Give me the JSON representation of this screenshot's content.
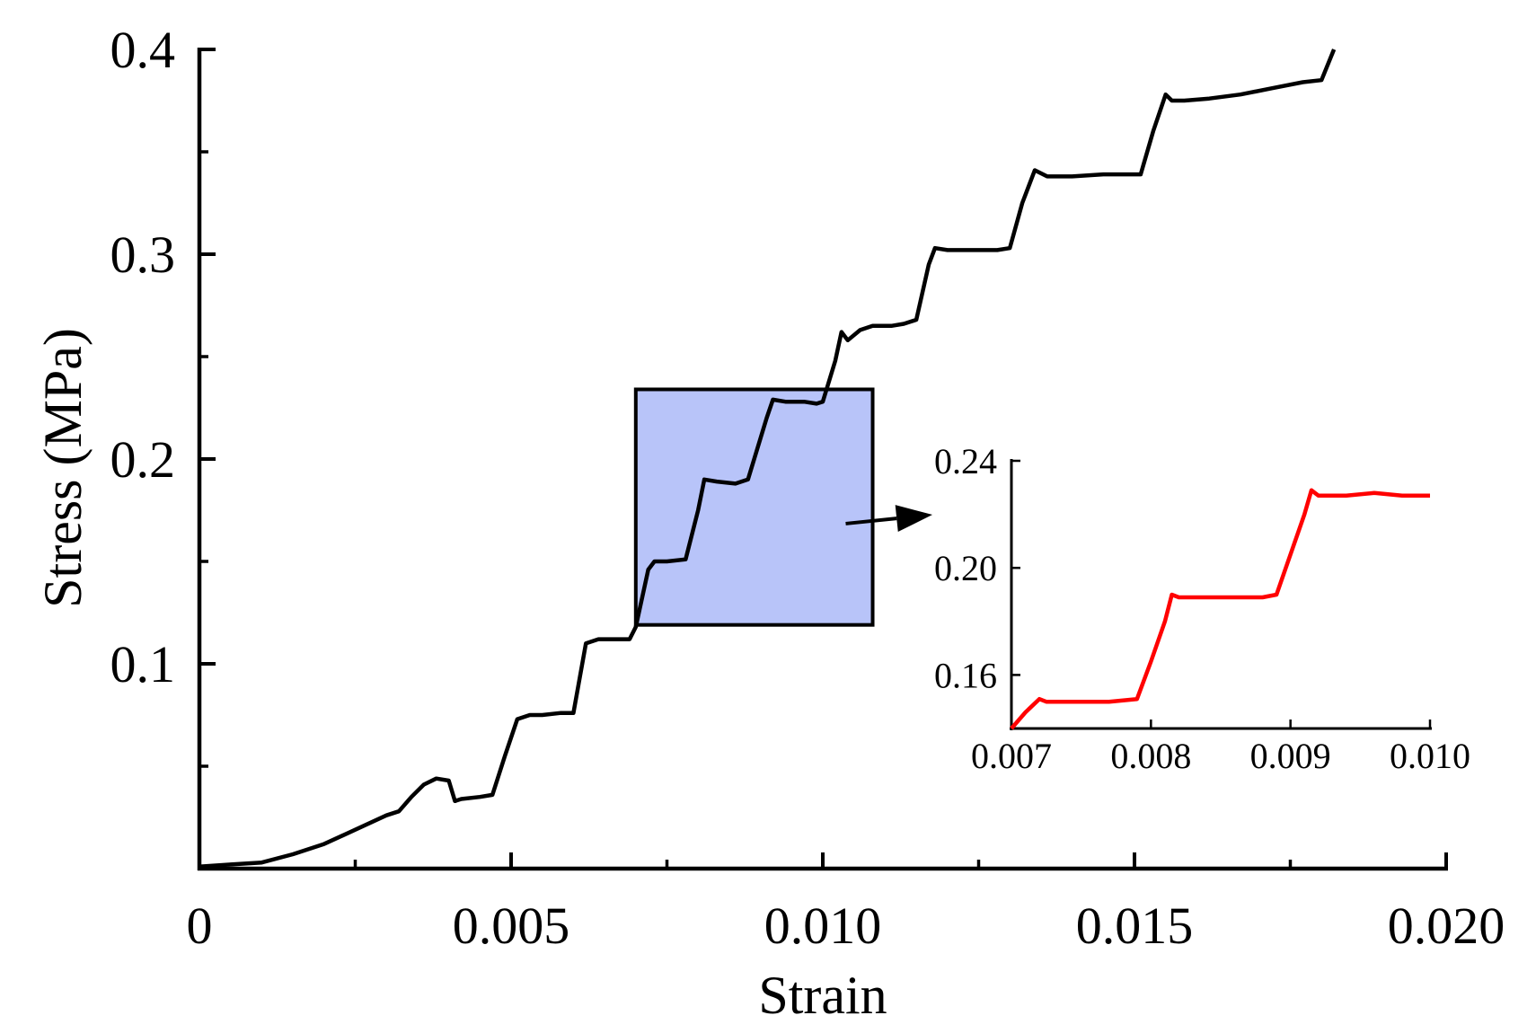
{
  "chart_data": [
    {
      "type": "line",
      "xlabel": "Strain",
      "ylabel": "Stress (MPa)",
      "xlim": [
        0,
        0.02
      ],
      "ylim": [
        0,
        0.4
      ],
      "x_ticks": [
        {
          "value": 0,
          "label": "0"
        },
        {
          "value": 0.005,
          "label": "0.005"
        },
        {
          "value": 0.01,
          "label": "0.010"
        },
        {
          "value": 0.015,
          "label": "0.015"
        },
        {
          "value": 0.02,
          "label": "0.020"
        }
      ],
      "y_ticks": [
        {
          "value": 0.1,
          "label": "0.1"
        },
        {
          "value": 0.2,
          "label": "0.2"
        },
        {
          "value": 0.3,
          "label": "0.3"
        },
        {
          "value": 0.4,
          "label": "0.4"
        }
      ],
      "x_minor_ticks": [
        0.0025,
        0.0075,
        0.0125,
        0.0175
      ],
      "y_minor_ticks": [
        0.05,
        0.15,
        0.25,
        0.35
      ],
      "line_color": "#000000",
      "grid": false,
      "series": [
        {
          "x": [
            0,
            0.0005,
            0.001,
            0.0015,
            0.002,
            0.0025,
            0.003,
            0.0032,
            0.0034,
            0.0036,
            0.0038,
            0.004,
            0.0041,
            0.0042,
            0.0045,
            0.0047,
            0.0049,
            0.0051,
            0.0053,
            0.0055,
            0.0058,
            0.006,
            0.0062,
            0.0064,
            0.0066,
            0.0069,
            0.007,
            0.0072,
            0.0073,
            0.0075,
            0.0078,
            0.008,
            0.0081,
            0.0083,
            0.0086,
            0.0088,
            0.0091,
            0.0092,
            0.0094,
            0.0097,
            0.0099,
            0.01,
            0.0102,
            0.0103,
            0.0104,
            0.0106,
            0.0108,
            0.0111,
            0.0113,
            0.0115,
            0.0117,
            0.0118,
            0.012,
            0.0123,
            0.0125,
            0.0128,
            0.013,
            0.0132,
            0.0134,
            0.0136,
            0.014,
            0.0145,
            0.0149,
            0.0151,
            0.0153,
            0.0155,
            0.0156,
            0.0158,
            0.0162,
            0.0167,
            0.0172,
            0.0177,
            0.018,
            0.0182
          ],
          "y": [
            0.001,
            0.002,
            0.003,
            0.007,
            0.012,
            0.019,
            0.026,
            0.028,
            0.035,
            0.041,
            0.044,
            0.043,
            0.033,
            0.034,
            0.035,
            0.036,
            0.055,
            0.073,
            0.075,
            0.075,
            0.076,
            0.076,
            0.11,
            0.112,
            0.112,
            0.112,
            0.118,
            0.146,
            0.15,
            0.15,
            0.151,
            0.175,
            0.19,
            0.189,
            0.188,
            0.19,
            0.22,
            0.229,
            0.228,
            0.228,
            0.227,
            0.228,
            0.248,
            0.262,
            0.258,
            0.263,
            0.265,
            0.265,
            0.266,
            0.268,
            0.295,
            0.303,
            0.302,
            0.302,
            0.302,
            0.302,
            0.303,
            0.325,
            0.341,
            0.338,
            0.338,
            0.339,
            0.339,
            0.339,
            0.36,
            0.378,
            0.375,
            0.375,
            0.376,
            0.378,
            0.381,
            0.384,
            0.385,
            0.4
          ]
        }
      ]
    },
    {
      "type": "line",
      "xlim": [
        0.007,
        0.01
      ],
      "ylim": [
        0.14,
        0.24
      ],
      "x_ticks": [
        {
          "value": 0.007,
          "label": "0.007"
        },
        {
          "value": 0.008,
          "label": "0.008"
        },
        {
          "value": 0.009,
          "label": "0.009"
        },
        {
          "value": 0.01,
          "label": "0.010"
        }
      ],
      "y_ticks": [
        {
          "value": 0.16,
          "label": "0.16"
        },
        {
          "value": 0.2,
          "label": "0.20"
        },
        {
          "value": 0.24,
          "label": "0.24"
        }
      ],
      "line_color": "#ff0000",
      "grid": false,
      "series": [
        {
          "x": [
            0.007,
            0.0071,
            0.0072,
            0.00725,
            0.0074,
            0.0077,
            0.0079,
            0.008,
            0.0081,
            0.00815,
            0.0082,
            0.0085,
            0.0088,
            0.0089,
            0.0091,
            0.00915,
            0.0092,
            0.0094,
            0.0096,
            0.0098,
            0.01
          ],
          "y": [
            0.14,
            0.146,
            0.151,
            0.15,
            0.15,
            0.15,
            0.151,
            0.165,
            0.18,
            0.19,
            0.189,
            0.189,
            0.189,
            0.19,
            0.22,
            0.229,
            0.227,
            0.227,
            0.228,
            0.227,
            0.227
          ]
        }
      ]
    }
  ],
  "zoom_region": {
    "xlim": [
      0.007,
      0.0108
    ],
    "ylim": [
      0.119,
      0.234
    ],
    "fill_color": "#b8c4f9"
  }
}
